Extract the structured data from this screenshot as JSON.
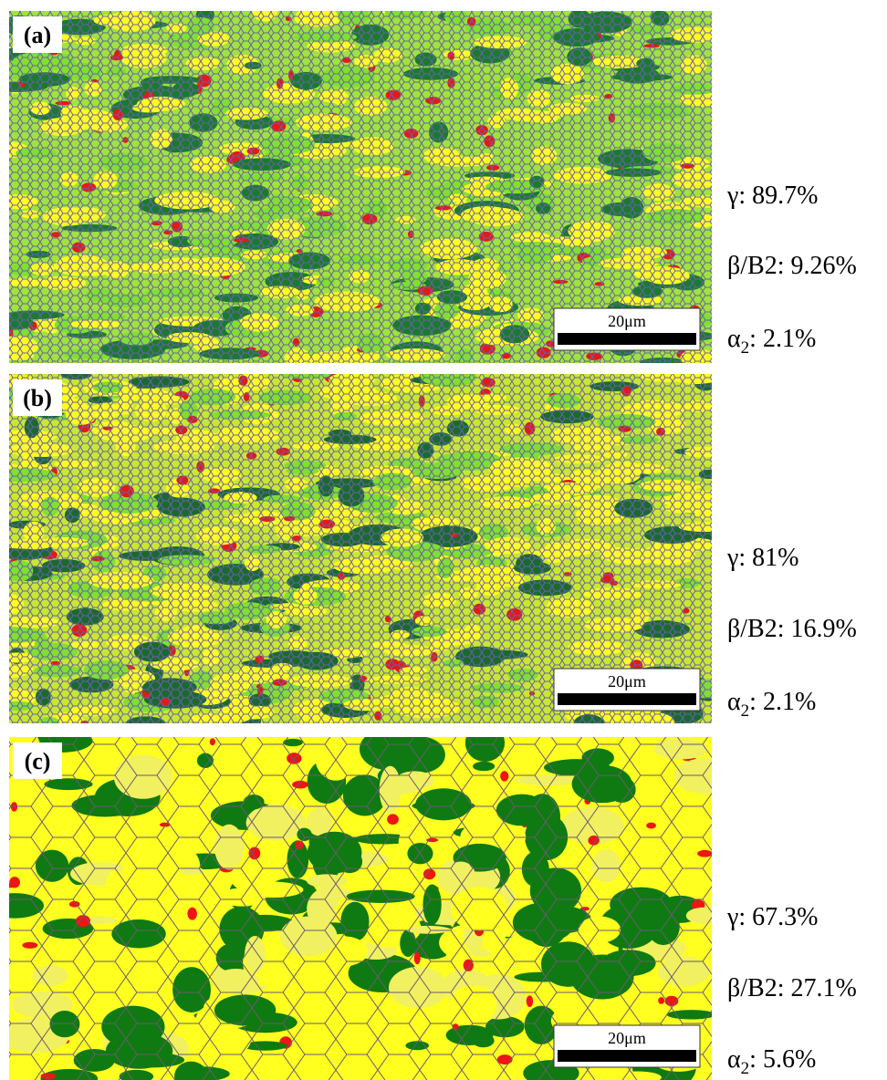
{
  "panels": [
    {
      "label": "(a)",
      "scale_bar": "20μm",
      "phases": [
        {
          "label": "γ: 89.7%"
        },
        {
          "label": "β/B2: 9.26%"
        },
        {
          "label": "α",
          "subscript": "2",
          "fraction": ": 2.1%"
        }
      ]
    },
    {
      "label": "(b)",
      "scale_bar": "20μm",
      "phases": [
        {
          "label": "γ: 81%"
        },
        {
          "label": "β/B2: 16.9%"
        },
        {
          "label": "α",
          "subscript": "2",
          "fraction": ": 2.1%"
        }
      ]
    },
    {
      "label": "(c)",
      "scale_bar": "20μm",
      "phases": [
        {
          "label": "γ: 67.3%"
        },
        {
          "label": "β/B2: 27.1%"
        },
        {
          "label": "α",
          "subscript": "2",
          "fraction": ": 5.6%"
        }
      ]
    }
  ]
}
